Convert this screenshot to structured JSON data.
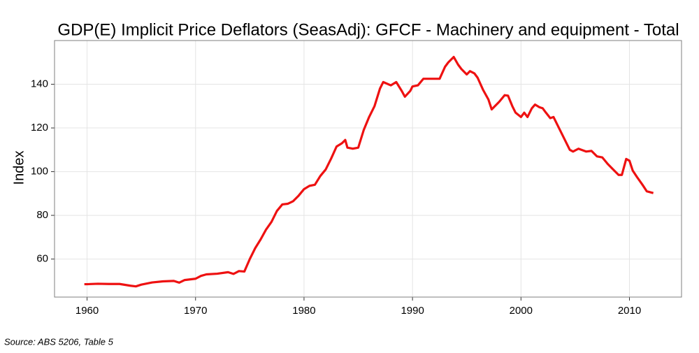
{
  "chart_data": {
    "type": "line",
    "title": "GDP(E) Implicit Price Deflators (SeasAdj): GFCF - Machinery and equipment - Total",
    "y_label": "Index",
    "source": "Source: ABS 5206, Table 5",
    "x": [
      1959.75,
      1960,
      1961,
      1962,
      1963,
      1964,
      1964.5,
      1965,
      1966,
      1967,
      1968,
      1968.5,
      1969,
      1970,
      1970.5,
      1971,
      1972,
      1973,
      1973.5,
      1974,
      1974.5,
      1975,
      1975.5,
      1976,
      1976.5,
      1977,
      1977.5,
      1978,
      1978.5,
      1979,
      1979.5,
      1980,
      1980.5,
      1981,
      1981.5,
      1982,
      1982.5,
      1983,
      1983.5,
      1983.8,
      1984,
      1984.5,
      1985,
      1985.5,
      1986,
      1986.5,
      1987,
      1987.3,
      1988,
      1988.5,
      1989,
      1989.3,
      1989.8,
      1990,
      1990.5,
      1991,
      1992,
      1992.5,
      1993,
      1993.3,
      1993.8,
      1994.2,
      1994.5,
      1995,
      1995.3,
      1995.7,
      1996,
      1996.5,
      1997,
      1997.3,
      1998,
      1998.5,
      1998.8,
      1999.2,
      1999.5,
      2000,
      2000.3,
      2000.6,
      2001,
      2001.3,
      2001.7,
      2002,
      2002.3,
      2002.7,
      2003,
      2003.5,
      2004,
      2004.5,
      2004.8,
      2005.3,
      2006,
      2006.5,
      2007,
      2007.5,
      2008,
      2008.5,
      2009,
      2009.3,
      2009.7,
      2010,
      2010.3,
      2010.7,
      2011.2,
      2011.6,
      2012.2
    ],
    "series": [
      {
        "name": "GFCF - Machinery and equipment",
        "color": "#ee1111",
        "values": [
          48.5,
          48.5,
          48.7,
          48.6,
          48.6,
          47.8,
          47.5,
          48.3,
          49.3,
          49.8,
          50.0,
          49.2,
          50.4,
          51.0,
          52.3,
          53.0,
          53.3,
          54.0,
          53.2,
          54.5,
          54.3,
          60,
          65,
          69,
          73.5,
          77,
          82,
          85,
          85.3,
          86.5,
          89,
          92,
          93.5,
          94,
          98,
          101,
          106,
          111.5,
          113,
          114.5,
          111,
          110.5,
          111,
          119,
          125,
          130,
          138,
          141,
          139.5,
          141,
          137,
          134.3,
          137,
          139,
          139.5,
          142.5,
          142.5,
          142.5,
          148,
          150,
          152.5,
          149,
          147,
          144.5,
          146,
          145,
          143,
          137.5,
          133,
          128.5,
          132,
          135,
          134.8,
          130,
          127,
          125,
          127,
          125,
          129,
          130.7,
          129.5,
          129,
          127,
          124.5,
          125,
          120,
          115,
          110,
          109.2,
          110.5,
          109.2,
          109.5,
          107,
          106.5,
          103.5,
          101,
          98.5,
          98.5,
          105.8,
          105,
          100.5,
          97.5,
          94,
          91,
          90.2
        ]
      }
    ],
    "xlim": [
      1957,
      2014.8
    ],
    "ylim": [
      42.6,
      160
    ],
    "xticks": [
      1960,
      1970,
      1980,
      1990,
      2000,
      2010
    ],
    "yticks": [
      60,
      80,
      100,
      120,
      140
    ],
    "grid": true
  }
}
